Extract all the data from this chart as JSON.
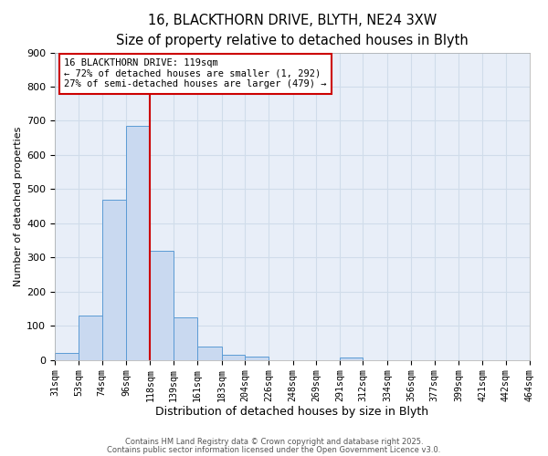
{
  "title_line1": "16, BLACKTHORN DRIVE, BLYTH, NE24 3XW",
  "title_line2": "Size of property relative to detached houses in Blyth",
  "xlabel": "Distribution of detached houses by size in Blyth",
  "ylabel": "Number of detached properties",
  "bin_edges": [
    31,
    53,
    74,
    96,
    118,
    139,
    161,
    183,
    204,
    226,
    248,
    269,
    291,
    312,
    334,
    356,
    377,
    399,
    421,
    442,
    464
  ],
  "bar_heights": [
    20,
    130,
    470,
    685,
    320,
    125,
    38,
    15,
    10,
    0,
    0,
    0,
    8,
    0,
    0,
    0,
    0,
    0,
    0,
    0
  ],
  "bar_facecolor": "#c9d9f0",
  "bar_edgecolor": "#5b9bd5",
  "vline_x": 118,
  "vline_color": "#cc0000",
  "ylim": [
    0,
    900
  ],
  "yticks": [
    0,
    100,
    200,
    300,
    400,
    500,
    600,
    700,
    800,
    900
  ],
  "annotation_title": "16 BLACKTHORN DRIVE: 119sqm",
  "annotation_line2": "← 72% of detached houses are smaller (1, 292)",
  "annotation_line3": "27% of semi-detached houses are larger (479) →",
  "annotation_box_facecolor": "#ffffff",
  "annotation_box_edgecolor": "#cc0000",
  "grid_color": "#d0dcea",
  "background_color": "#e8eef8",
  "footer_line1": "Contains HM Land Registry data © Crown copyright and database right 2025.",
  "footer_line2": "Contains public sector information licensed under the Open Government Licence v3.0.",
  "title_fontsize": 10.5,
  "subtitle_fontsize": 9.5
}
